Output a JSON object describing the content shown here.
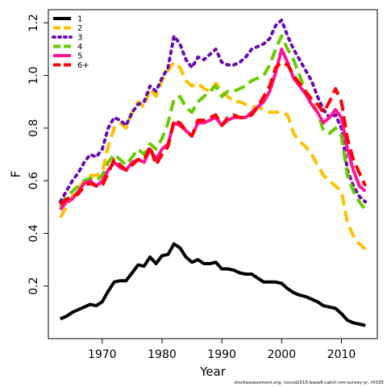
{
  "chart_data": {
    "type": "line",
    "title": "",
    "xlabel": "Year",
    "ylabel": "F",
    "xlim": [
      1961,
      2016
    ],
    "ylim": [
      0.0,
      1.25
    ],
    "xticks": [
      1970,
      1980,
      1990,
      2000,
      2010
    ],
    "yticks": [
      0.2,
      0.4,
      0.6,
      0.8,
      1.0,
      1.2
    ],
    "xtick_labels": [
      "1970",
      "1980",
      "1990",
      "2000",
      "2010"
    ],
    "ytick_labels": [
      "0.2",
      "0.4",
      "0.6",
      "0.8",
      "1.0",
      "1.2"
    ],
    "grid": false,
    "legend_position": "top-left",
    "footnote": "stockassessment.org, nscod2015-base6-catch-nm-survey-yr, r5035",
    "x": [
      1963,
      1964,
      1965,
      1966,
      1967,
      1968,
      1969,
      1970,
      1971,
      1972,
      1973,
      1974,
      1975,
      1976,
      1977,
      1978,
      1979,
      1980,
      1981,
      1982,
      1983,
      1984,
      1985,
      1986,
      1987,
      1988,
      1989,
      1990,
      1991,
      1992,
      1993,
      1994,
      1995,
      1996,
      1997,
      1998,
      1999,
      2000,
      2001,
      2002,
      2003,
      2004,
      2005,
      2006,
      2007,
      2008,
      2009,
      2010,
      2011,
      2012,
      2013,
      2014
    ],
    "series": [
      {
        "name": "1",
        "color": "#000000",
        "dash": "solid",
        "values": [
          0.075,
          0.085,
          0.1,
          0.11,
          0.12,
          0.13,
          0.125,
          0.14,
          0.18,
          0.215,
          0.22,
          0.22,
          0.25,
          0.28,
          0.275,
          0.31,
          0.285,
          0.315,
          0.32,
          0.36,
          0.345,
          0.31,
          0.29,
          0.3,
          0.285,
          0.285,
          0.29,
          0.265,
          0.265,
          0.26,
          0.25,
          0.245,
          0.245,
          0.23,
          0.215,
          0.215,
          0.215,
          0.21,
          0.19,
          0.175,
          0.165,
          0.16,
          0.15,
          0.14,
          0.125,
          0.12,
          0.115,
          0.095,
          0.07,
          0.06,
          0.055,
          0.05
        ]
      },
      {
        "name": "2",
        "color": "#FFC000",
        "dash": "dashed",
        "values": [
          0.46,
          0.5,
          0.54,
          0.57,
          0.6,
          0.62,
          0.62,
          0.63,
          0.73,
          0.8,
          0.82,
          0.8,
          0.86,
          0.9,
          0.88,
          0.95,
          0.92,
          0.98,
          1.02,
          1.05,
          1.03,
          0.98,
          0.96,
          0.97,
          0.95,
          0.94,
          0.97,
          0.94,
          0.92,
          0.9,
          0.9,
          0.89,
          0.88,
          0.88,
          0.87,
          0.86,
          0.86,
          0.86,
          0.85,
          0.78,
          0.75,
          0.73,
          0.7,
          0.66,
          0.62,
          0.6,
          0.58,
          0.56,
          0.44,
          0.39,
          0.36,
          0.34
        ]
      },
      {
        "name": "3",
        "color": "#6A0DAD",
        "dash": "dotted",
        "values": [
          0.52,
          0.56,
          0.6,
          0.63,
          0.67,
          0.7,
          0.69,
          0.72,
          0.8,
          0.84,
          0.83,
          0.81,
          0.86,
          0.89,
          0.9,
          0.96,
          0.94,
          0.99,
          1.03,
          1.15,
          1.12,
          1.06,
          1.03,
          1.07,
          1.06,
          1.08,
          1.1,
          1.05,
          1.04,
          1.04,
          1.05,
          1.07,
          1.1,
          1.11,
          1.12,
          1.14,
          1.19,
          1.21,
          1.15,
          1.1,
          1.06,
          1.02,
          0.98,
          0.92,
          0.87,
          0.84,
          0.85,
          0.8,
          0.64,
          0.58,
          0.54,
          0.52
        ]
      },
      {
        "name": "4",
        "color": "#66CC00",
        "dash": "dashed",
        "values": [
          0.5,
          0.54,
          0.56,
          0.58,
          0.6,
          0.61,
          0.6,
          0.62,
          0.67,
          0.7,
          0.68,
          0.66,
          0.69,
          0.72,
          0.7,
          0.74,
          0.72,
          0.76,
          0.82,
          0.91,
          0.92,
          0.88,
          0.86,
          0.9,
          0.92,
          0.94,
          0.96,
          0.92,
          0.94,
          0.94,
          0.95,
          0.96,
          0.98,
          0.99,
          1.0,
          1.04,
          1.1,
          1.15,
          1.1,
          1.06,
          1.0,
          0.94,
          0.9,
          0.86,
          0.79,
          0.78,
          0.8,
          0.77,
          0.62,
          0.56,
          0.52,
          0.49
        ]
      },
      {
        "name": "5",
        "color": "#FF1493",
        "dash": "solid",
        "values": [
          0.49,
          0.52,
          0.53,
          0.56,
          0.59,
          0.6,
          0.58,
          0.6,
          0.64,
          0.67,
          0.65,
          0.64,
          0.67,
          0.68,
          0.67,
          0.72,
          0.68,
          0.72,
          0.74,
          0.82,
          0.81,
          0.79,
          0.77,
          0.82,
          0.82,
          0.83,
          0.84,
          0.81,
          0.83,
          0.84,
          0.84,
          0.84,
          0.86,
          0.88,
          0.9,
          0.94,
          1.01,
          1.1,
          1.05,
          0.99,
          0.96,
          0.93,
          0.89,
          0.86,
          0.82,
          0.84,
          0.87,
          0.84,
          0.72,
          0.64,
          0.58,
          0.56
        ]
      },
      {
        "name": "6+",
        "color": "#FF0000",
        "dash": "dashed",
        "values": [
          0.51,
          0.53,
          0.54,
          0.55,
          0.58,
          0.59,
          0.58,
          0.58,
          0.63,
          0.68,
          0.66,
          0.64,
          0.66,
          0.68,
          0.68,
          0.73,
          0.66,
          0.7,
          0.73,
          0.83,
          0.82,
          0.79,
          0.77,
          0.83,
          0.83,
          0.84,
          0.85,
          0.81,
          0.84,
          0.85,
          0.84,
          0.84,
          0.85,
          0.88,
          0.92,
          0.96,
          1.03,
          1.05,
          1.04,
          1.0,
          0.97,
          0.94,
          0.91,
          0.89,
          0.86,
          0.9,
          0.95,
          0.9,
          0.76,
          0.68,
          0.63,
          0.58
        ]
      }
    ]
  }
}
